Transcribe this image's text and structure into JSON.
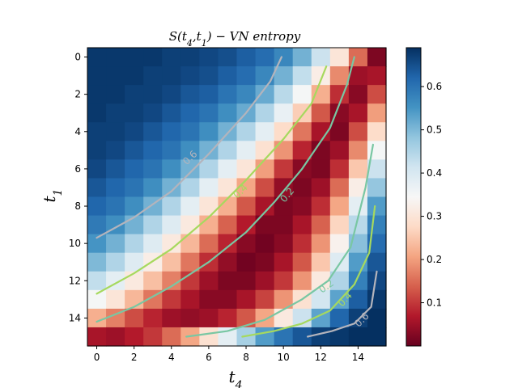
{
  "chart_data": {
    "type": "heatmap",
    "title": "S(t_4,t_1) − VN entropy",
    "title_parts": {
      "base": "S(t",
      "sub1": "4",
      "mid": ",t",
      "sub2": "1",
      "end": ") − VN entropy"
    },
    "xlabel": {
      "base": "t",
      "sub": "4"
    },
    "ylabel": {
      "base": "t",
      "sub": "1"
    },
    "x_ticks": [
      "0",
      "2",
      "4",
      "6",
      "8",
      "10",
      "12",
      "14"
    ],
    "y_ticks": [
      "0",
      "2",
      "4",
      "6",
      "8",
      "10",
      "12",
      "14"
    ],
    "colorbar_ticks": [
      "0.1",
      "0.2",
      "0.3",
      "0.4",
      "0.5",
      "0.6"
    ],
    "colorbar_range": [
      0.0,
      0.69
    ],
    "colormap": "RdBu",
    "colormap_stops": [
      "#67001f",
      "#b2182b",
      "#d6604d",
      "#f4a582",
      "#fddbc7",
      "#f7f7f7",
      "#d1e5f0",
      "#92c5de",
      "#4393c3",
      "#2166ac",
      "#053061"
    ],
    "grid_size": [
      16,
      16
    ],
    "values": [
      [
        0.68,
        0.68,
        0.68,
        0.68,
        0.67,
        0.67,
        0.66,
        0.65,
        0.63,
        0.61,
        0.57,
        0.51,
        0.42,
        0.3,
        0.15,
        0.02
      ],
      [
        0.68,
        0.68,
        0.68,
        0.67,
        0.67,
        0.66,
        0.65,
        0.63,
        0.61,
        0.57,
        0.51,
        0.43,
        0.32,
        0.18,
        0.05,
        0.06
      ],
      [
        0.68,
        0.68,
        0.67,
        0.67,
        0.66,
        0.64,
        0.63,
        0.6,
        0.57,
        0.52,
        0.44,
        0.35,
        0.22,
        0.09,
        0.03,
        0.12
      ],
      [
        0.68,
        0.67,
        0.67,
        0.66,
        0.64,
        0.62,
        0.6,
        0.56,
        0.52,
        0.45,
        0.37,
        0.26,
        0.13,
        0.03,
        0.06,
        0.2
      ],
      [
        0.67,
        0.67,
        0.66,
        0.64,
        0.62,
        0.6,
        0.56,
        0.51,
        0.45,
        0.38,
        0.28,
        0.16,
        0.06,
        0.02,
        0.12,
        0.28
      ],
      [
        0.67,
        0.66,
        0.64,
        0.62,
        0.6,
        0.56,
        0.51,
        0.45,
        0.38,
        0.29,
        0.19,
        0.08,
        0.02,
        0.05,
        0.18,
        0.35
      ],
      [
        0.66,
        0.64,
        0.62,
        0.6,
        0.56,
        0.51,
        0.45,
        0.38,
        0.3,
        0.2,
        0.1,
        0.03,
        0.02,
        0.09,
        0.25,
        0.42
      ],
      [
        0.64,
        0.62,
        0.6,
        0.56,
        0.51,
        0.45,
        0.38,
        0.3,
        0.21,
        0.12,
        0.04,
        0.02,
        0.05,
        0.15,
        0.32,
        0.48
      ],
      [
        0.62,
        0.6,
        0.56,
        0.51,
        0.45,
        0.38,
        0.3,
        0.22,
        0.13,
        0.06,
        0.02,
        0.03,
        0.09,
        0.21,
        0.38,
        0.54
      ],
      [
        0.59,
        0.56,
        0.51,
        0.45,
        0.39,
        0.31,
        0.22,
        0.14,
        0.07,
        0.02,
        0.02,
        0.06,
        0.14,
        0.27,
        0.44,
        0.58
      ],
      [
        0.55,
        0.51,
        0.45,
        0.39,
        0.31,
        0.23,
        0.15,
        0.08,
        0.03,
        0.01,
        0.03,
        0.09,
        0.19,
        0.33,
        0.49,
        0.61
      ],
      [
        0.5,
        0.45,
        0.39,
        0.32,
        0.24,
        0.16,
        0.09,
        0.04,
        0.01,
        0.02,
        0.06,
        0.13,
        0.25,
        0.39,
        0.54,
        0.64
      ],
      [
        0.43,
        0.38,
        0.31,
        0.24,
        0.17,
        0.1,
        0.05,
        0.02,
        0.02,
        0.05,
        0.1,
        0.19,
        0.31,
        0.45,
        0.58,
        0.66
      ],
      [
        0.35,
        0.3,
        0.23,
        0.16,
        0.1,
        0.06,
        0.03,
        0.03,
        0.06,
        0.11,
        0.19,
        0.29,
        0.41,
        0.53,
        0.63,
        0.68
      ],
      [
        0.22,
        0.17,
        0.12,
        0.08,
        0.05,
        0.04,
        0.05,
        0.08,
        0.13,
        0.21,
        0.31,
        0.42,
        0.53,
        0.62,
        0.67,
        0.69
      ],
      [
        0.06,
        0.05,
        0.07,
        0.1,
        0.15,
        0.21,
        0.29,
        0.38,
        0.46,
        0.54,
        0.6,
        0.64,
        0.67,
        0.68,
        0.69,
        0.69
      ]
    ],
    "contours": [
      {
        "label": "0.6",
        "color": "#b4b4bc",
        "points": [
          [
            0.0,
            9.7
          ],
          [
            2.0,
            8.6
          ],
          [
            4.0,
            7.2
          ],
          [
            6.0,
            5.2
          ],
          [
            8.0,
            3.0
          ],
          [
            9.3,
            1.3
          ],
          [
            9.9,
            0.0
          ]
        ],
        "label_at": [
          5.0,
          5.4
        ]
      },
      {
        "label": "0.4",
        "color": "#a6d95e",
        "points": [
          [
            0.0,
            12.7
          ],
          [
            2.0,
            11.6
          ],
          [
            4.0,
            10.3
          ],
          [
            6.0,
            8.6
          ],
          [
            8.0,
            6.6
          ],
          [
            10.0,
            4.4
          ],
          [
            11.5,
            2.5
          ],
          [
            12.3,
            0.5
          ]
        ],
        "label_at": [
          7.7,
          7.2
        ]
      },
      {
        "label": "0.2",
        "color": "#79c7a3",
        "points": [
          [
            0.0,
            14.2
          ],
          [
            2.0,
            13.4
          ],
          [
            4.0,
            12.3
          ],
          [
            6.0,
            11.0
          ],
          [
            8.0,
            9.4
          ],
          [
            9.5,
            7.8
          ],
          [
            11.0,
            6.0
          ],
          [
            12.5,
            3.8
          ],
          [
            13.4,
            1.5
          ],
          [
            13.8,
            0.0
          ]
        ],
        "label_at": [
          10.2,
          7.4
        ]
      },
      {
        "label": "0.2",
        "color": "#79c7a3",
        "points": [
          [
            4.8,
            15.0
          ],
          [
            7.0,
            14.7
          ],
          [
            9.0,
            14.1
          ],
          [
            11.0,
            13.0
          ],
          [
            12.4,
            12.0
          ],
          [
            13.6,
            10.2
          ],
          [
            14.4,
            7.0
          ],
          [
            14.8,
            4.7
          ]
        ],
        "label_at": [
          12.3,
          12.3
        ]
      },
      {
        "label": "0.4",
        "color": "#a6d95e",
        "points": [
          [
            7.8,
            15.0
          ],
          [
            9.5,
            14.7
          ],
          [
            11.0,
            14.3
          ],
          [
            12.5,
            13.6
          ],
          [
            13.8,
            12.2
          ],
          [
            14.6,
            10.5
          ],
          [
            14.9,
            8.0
          ]
        ],
        "label_at": [
          13.3,
          13.0
        ]
      },
      {
        "label": "0.6",
        "color": "#b4b4bc",
        "points": [
          [
            11.3,
            15.0
          ],
          [
            12.6,
            14.7
          ],
          [
            13.8,
            14.3
          ],
          [
            14.7,
            13.4
          ],
          [
            15.0,
            11.5
          ]
        ],
        "label_at": [
          14.2,
          14.1
        ]
      }
    ]
  }
}
